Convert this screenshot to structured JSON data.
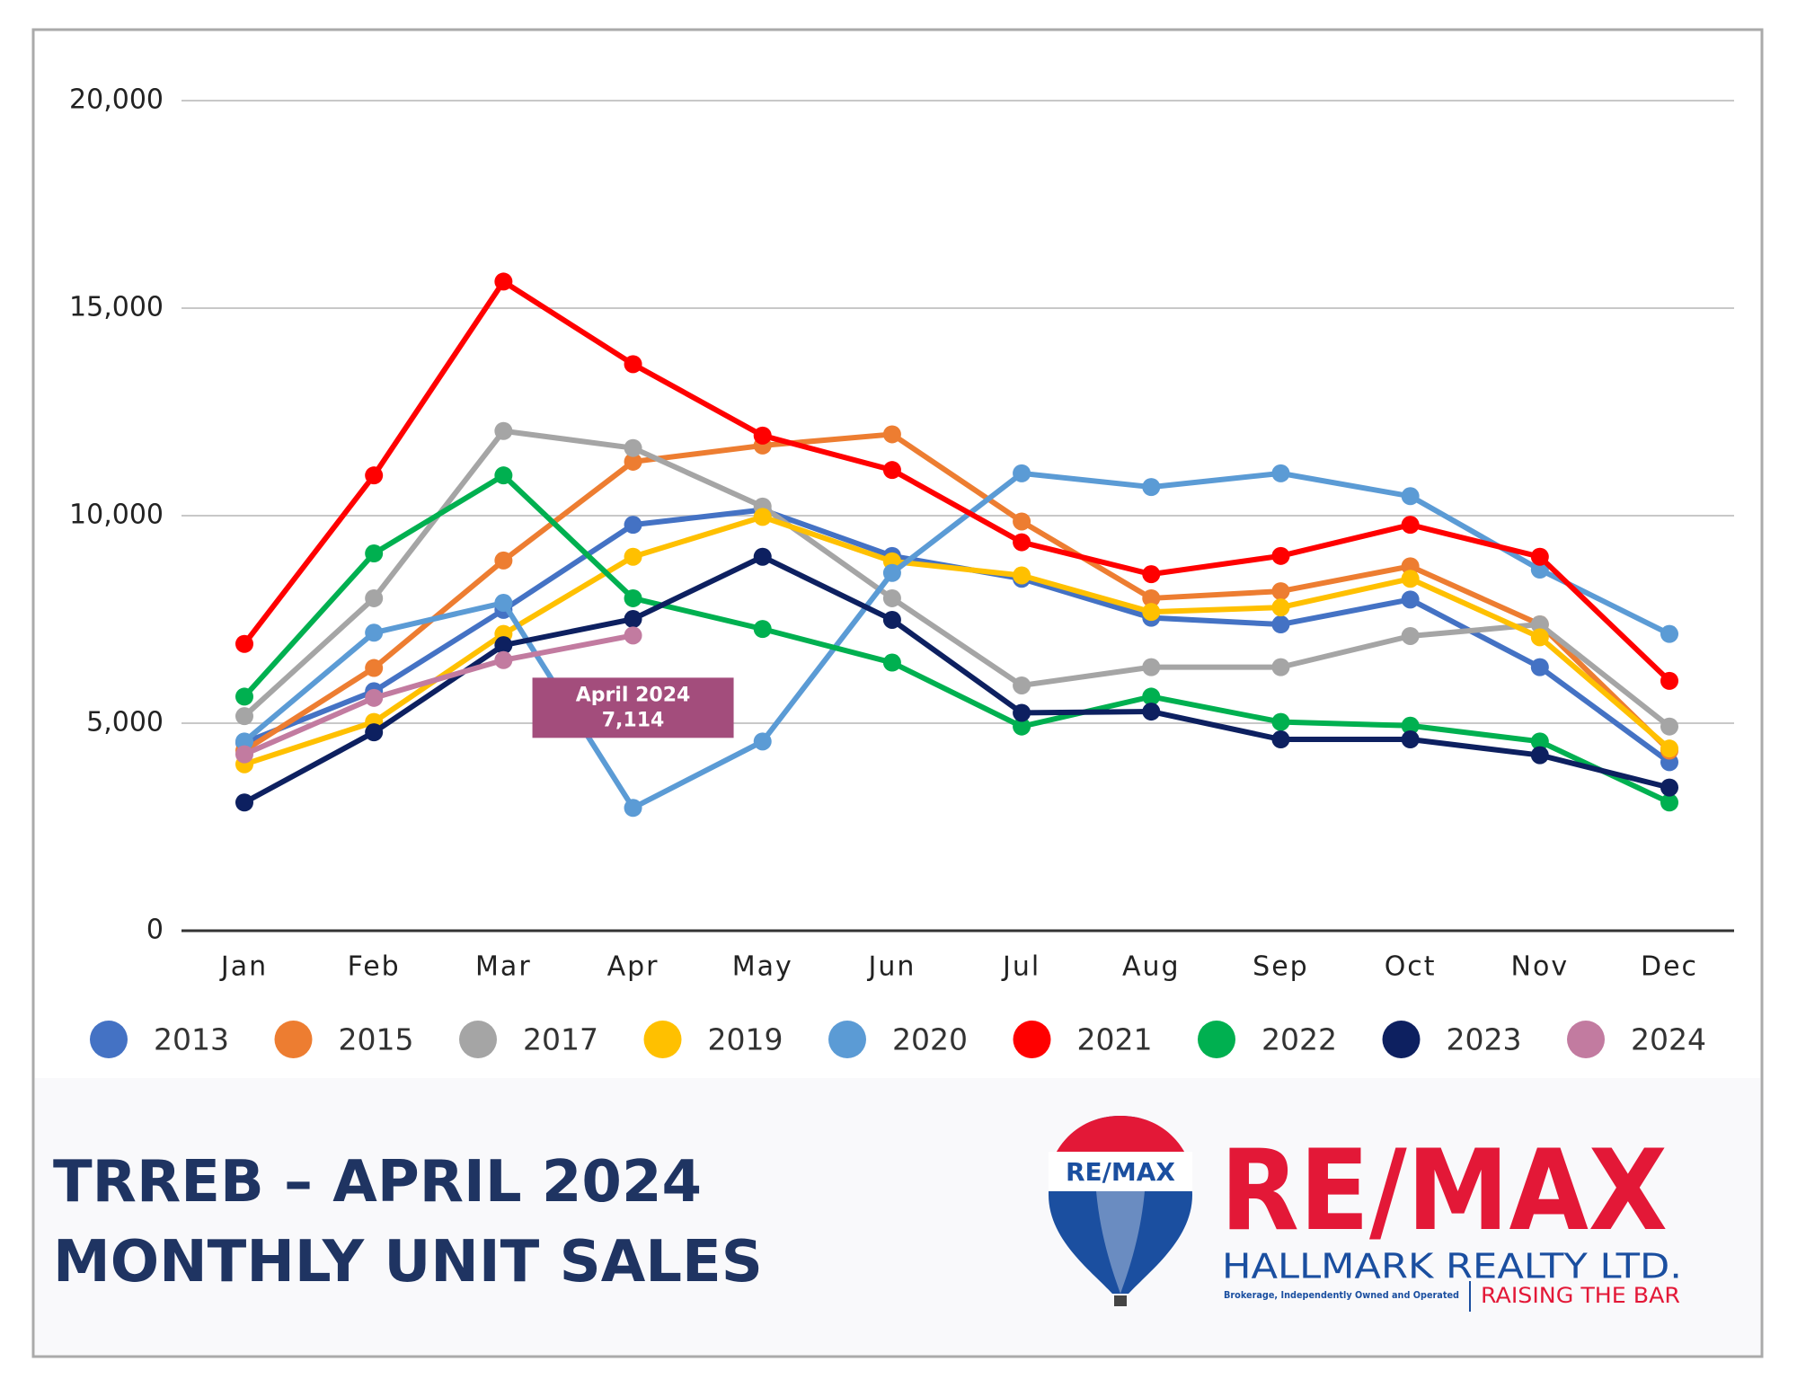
{
  "chart_data": {
    "type": "line",
    "categories": [
      "Jan",
      "Feb",
      "Mar",
      "Apr",
      "May",
      "Jun",
      "Jul",
      "Aug",
      "Sep",
      "Oct",
      "Nov",
      "Dec"
    ],
    "ylim": [
      0,
      20000
    ],
    "yticks": [
      0,
      {
        "value": 5000,
        "label": "5,000"
      },
      {
        "value": 10000,
        "label": "10,000"
      },
      {
        "value": 15000,
        "label": "15,000"
      },
      {
        "value": 20000,
        "label": "20,000"
      }
    ],
    "grid": true,
    "legend": "bottom",
    "series": [
      {
        "name": "2013",
        "color": "#4472c4",
        "values": [
          4530,
          5770,
          7730,
          9780,
          10140,
          9030,
          8480,
          7540,
          7380,
          7980,
          6350,
          4060
        ]
      },
      {
        "name": "2015",
        "color": "#ed7d31",
        "values": [
          4340,
          6330,
          8920,
          11300,
          11690,
          11960,
          9860,
          8010,
          8180,
          8780,
          7380,
          4340
        ]
      },
      {
        "name": "2017",
        "color": "#a5a5a5",
        "values": [
          5170,
          8010,
          12040,
          11630,
          10220,
          8010,
          5910,
          6350,
          6350,
          7100,
          7380,
          4920
        ]
      },
      {
        "name": "2019",
        "color": "#ffc000",
        "values": [
          4010,
          5030,
          7150,
          9010,
          9970,
          8900,
          8560,
          7680,
          7790,
          8480,
          7070,
          4390
        ]
      },
      {
        "name": "2020",
        "color": "#5b9bd5",
        "values": [
          4560,
          7180,
          7900,
          2960,
          4560,
          8620,
          11020,
          10690,
          11020,
          10470,
          8700,
          7150
        ]
      },
      {
        "name": "2021",
        "color": "#ff0000",
        "values": [
          6910,
          10970,
          15640,
          13650,
          11930,
          11100,
          9360,
          8590,
          9030,
          9780,
          9010,
          6020
        ]
      },
      {
        "name": "2022",
        "color": "#00b050",
        "values": [
          5640,
          9090,
          10970,
          8010,
          7270,
          6460,
          4920,
          5640,
          5030,
          4940,
          4560,
          3090
        ]
      },
      {
        "name": "2023",
        "color": "#0d2060",
        "values": [
          3090,
          4780,
          6880,
          7510,
          9010,
          7490,
          5250,
          5280,
          4610,
          4610,
          4230,
          3450
        ]
      },
      {
        "name": "2024",
        "color": "#c27ba0",
        "values": [
          4250,
          5610,
          6520,
          7114,
          null,
          null,
          null,
          null,
          null,
          null,
          null,
          null
        ]
      }
    ],
    "annotation": {
      "text": "April 2024",
      "value_label": "7,114",
      "color": "#a34d7c"
    }
  },
  "footer": {
    "title_lines": [
      "TRREB – APRIL 2024",
      "MONTHLY UNIT SALES"
    ]
  },
  "branding": {
    "balloon_text": "RE/MAX",
    "logo_text": "RE/MAX",
    "company": "HALLMARK REALTY LTD.",
    "note": "Brokerage, Independently Owned and Operated",
    "slogan": "RAISING THE BAR"
  }
}
